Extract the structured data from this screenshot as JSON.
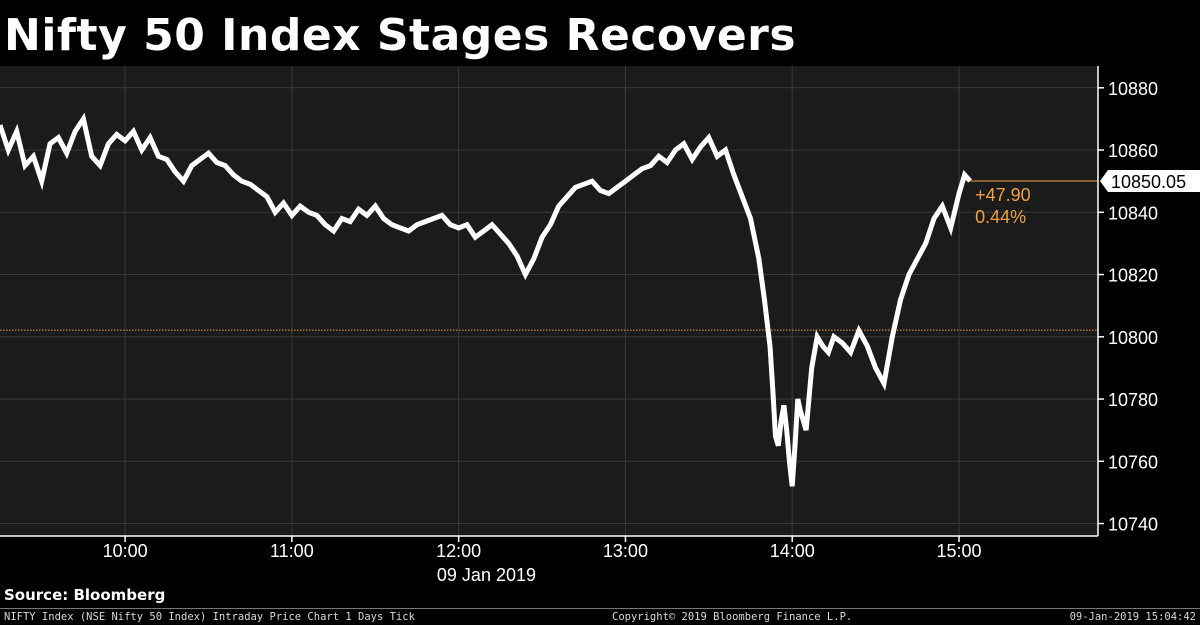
{
  "title": "Nifty 50 Index Stages Recovers",
  "source": "Source: Bloomberg",
  "footer": {
    "left": "NIFTY Index (NSE Nifty 50 Index) Intraday Price Chart 1 Days  Tick",
    "center": "Copyright© 2019 Bloomberg Finance L.P.",
    "right": "09-Jan-2019 15:04:42"
  },
  "colors": {
    "background": "#000000",
    "plot_background": "#1b1b1b",
    "grid": "#3a3a3a",
    "line": "#ffffff",
    "accent": "#f0a040"
  },
  "chart_data": {
    "type": "line",
    "date_label": "09 Jan 2019",
    "xlim": [
      "09:15",
      "15:50"
    ],
    "ylim": [
      10736,
      10887
    ],
    "y_ticks": [
      "10740",
      "10760",
      "10780",
      "10800",
      "10820",
      "10840",
      "10860",
      "10880"
    ],
    "x_ticks": [
      "10:00",
      "11:00",
      "12:00",
      "13:00",
      "14:00",
      "15:00"
    ],
    "grid": true,
    "previous_close": 10802.15,
    "last_value": "10850.05",
    "change": "+47.90",
    "change_pct": "0.44%",
    "series": [
      {
        "x": [
          "09:15",
          "09:18",
          "09:21",
          "09:24",
          "09:27",
          "09:30",
          "09:33",
          "09:36",
          "09:39",
          "09:42",
          "09:45",
          "09:48",
          "09:51",
          "09:54",
          "09:57",
          "10:00",
          "10:03",
          "10:06",
          "10:09",
          "10:12",
          "10:15",
          "10:18",
          "10:21",
          "10:24",
          "10:27",
          "10:30",
          "10:33",
          "10:36",
          "10:39",
          "10:42",
          "10:45",
          "10:48",
          "10:51",
          "10:54",
          "10:57",
          "11:00",
          "11:03",
          "11:06",
          "11:09",
          "11:12",
          "11:15",
          "11:18",
          "11:21",
          "11:24",
          "11:27",
          "11:30",
          "11:33",
          "11:36",
          "11:39",
          "11:42",
          "11:45",
          "11:48",
          "11:51",
          "11:54",
          "11:57",
          "12:00",
          "12:03",
          "12:06",
          "12:09",
          "12:12",
          "12:15",
          "12:18",
          "12:21",
          "12:24",
          "12:27",
          "12:30",
          "12:33",
          "12:36",
          "12:39",
          "12:42",
          "12:45",
          "12:48",
          "12:51",
          "12:54",
          "12:57",
          "13:00",
          "13:03",
          "13:06",
          "13:09",
          "13:12",
          "13:15",
          "13:18",
          "13:21",
          "13:24",
          "13:27",
          "13:30",
          "13:33",
          "13:36",
          "13:39",
          "13:42",
          "13:45",
          "13:48",
          "13:50",
          "13:52",
          "13:53",
          "13:54",
          "13:55",
          "13:56",
          "13:57",
          "13:58",
          "13:59",
          "14:00",
          "14:01",
          "14:02",
          "14:03",
          "14:05",
          "14:07",
          "14:09",
          "14:11",
          "14:13",
          "14:15",
          "14:18",
          "14:21",
          "14:24",
          "14:27",
          "14:30",
          "14:33",
          "14:36",
          "14:39",
          "14:42",
          "14:45",
          "14:48",
          "14:51",
          "14:54",
          "14:57",
          "15:00",
          "15:02",
          "15:04"
        ],
        "values": [
          10868,
          10860,
          10866,
          10855,
          10858,
          10850,
          10862,
          10864,
          10859,
          10866,
          10870,
          10858,
          10855,
          10862,
          10865,
          10863,
          10866,
          10860,
          10864,
          10858,
          10857,
          10853,
          10850,
          10855,
          10857,
          10859,
          10856,
          10855,
          10852,
          10850,
          10849,
          10847,
          10845,
          10840,
          10843,
          10839,
          10842,
          10840,
          10839,
          10836,
          10834,
          10838,
          10837,
          10841,
          10839,
          10842,
          10838,
          10836,
          10835,
          10834,
          10836,
          10837,
          10838,
          10839,
          10836,
          10835,
          10836,
          10832,
          10834,
          10836,
          10833,
          10830,
          10826,
          10820,
          10825,
          10832,
          10836,
          10842,
          10845,
          10848,
          10849,
          10850,
          10847,
          10846,
          10848,
          10850,
          10852,
          10854,
          10855,
          10858,
          10856,
          10860,
          10862,
          10857,
          10861,
          10864,
          10858,
          10860,
          10852,
          10845,
          10838,
          10825,
          10812,
          10797,
          10783,
          10768,
          10765,
          10773,
          10778,
          10770,
          10760,
          10752,
          10765,
          10780,
          10776,
          10770,
          10790,
          10800,
          10797,
          10795,
          10800,
          10798,
          10795,
          10802,
          10797,
          10790,
          10785,
          10800,
          10812,
          10820,
          10825,
          10830,
          10838,
          10842,
          10835,
          10846,
          10852,
          10850.05
        ]
      }
    ]
  }
}
